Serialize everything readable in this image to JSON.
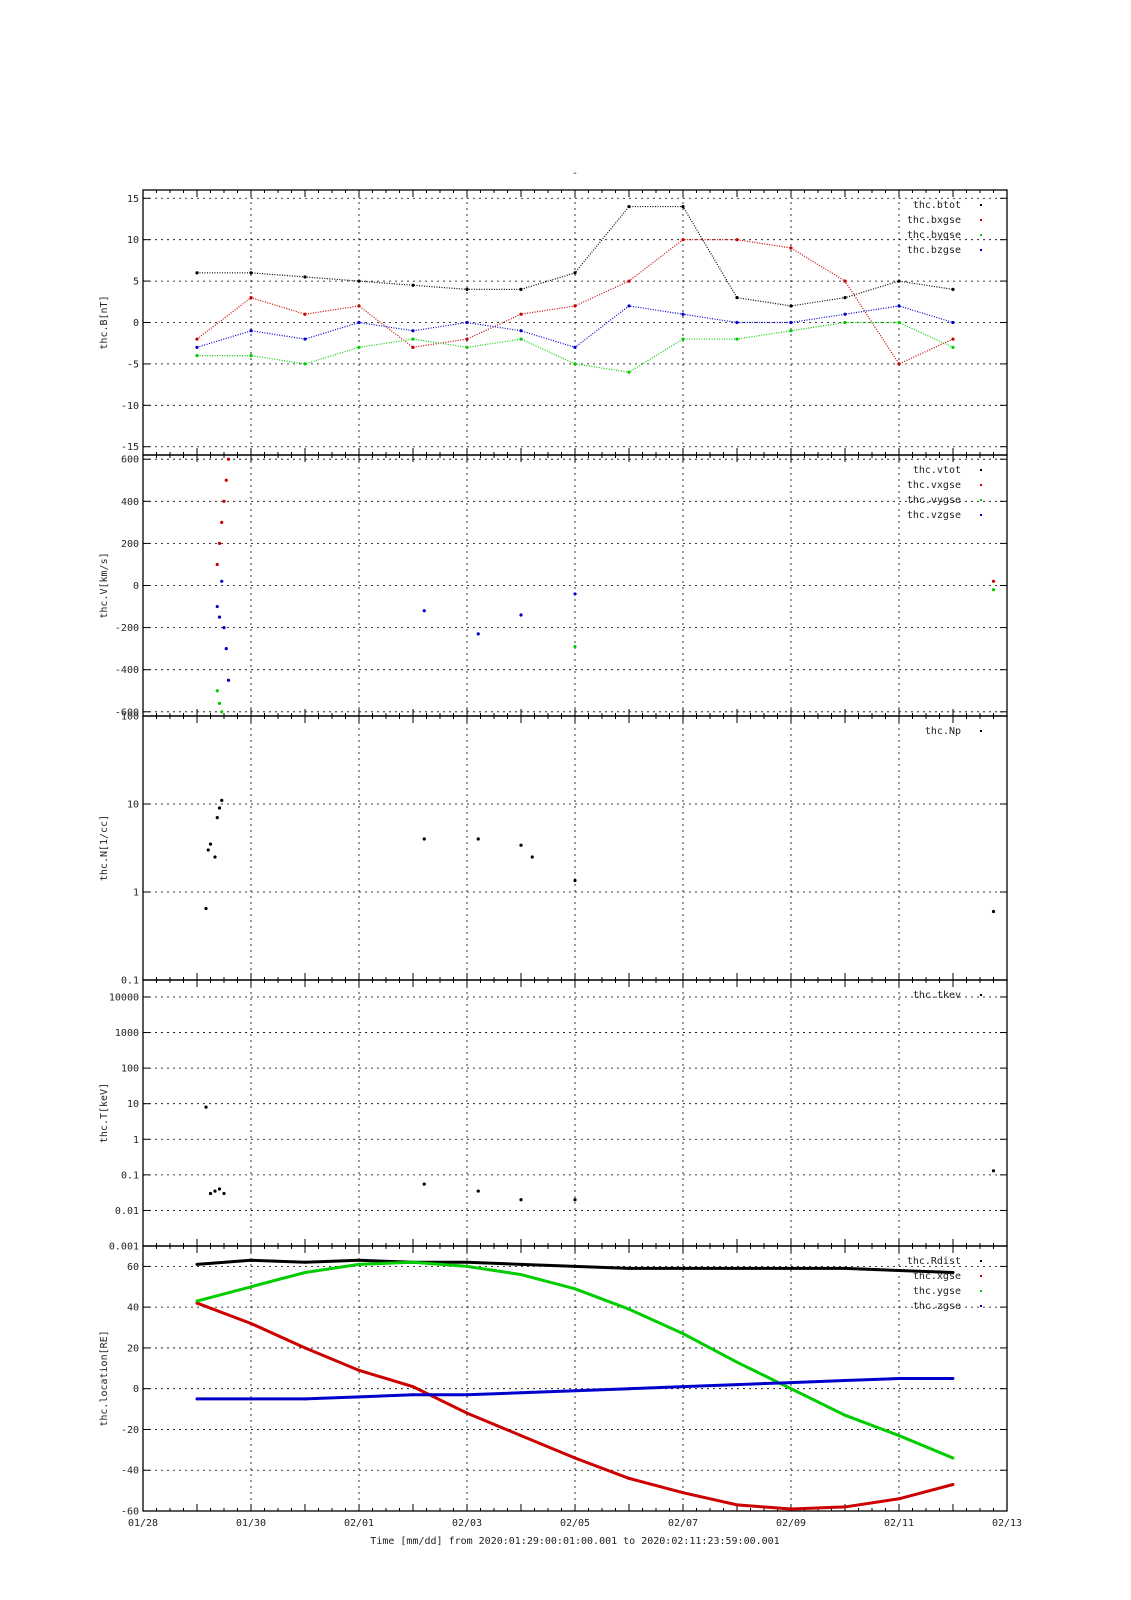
{
  "figure": {
    "title": "-",
    "time_axis": {
      "start": "2020-01-28",
      "end": "2020-02-13",
      "tick_labels": [
        "01/28",
        "01/30",
        "02/01",
        "02/03",
        "02/05",
        "02/07",
        "02/09",
        "02/11",
        "02/13"
      ],
      "caption": "Time [mm/dd]  from 2020:01:29:00:01:00.001  to  2020:02:11:23:59:00.001"
    }
  },
  "colors": {
    "black": "#000000",
    "red": "#cc0000",
    "green": "#00cc00",
    "blue": "#0000cc"
  },
  "chart_data": [
    {
      "type": "scatter",
      "ylabel": "thc.B[nT]",
      "ylim": [
        -16,
        16
      ],
      "yscale": "linear",
      "yticks": [
        -15,
        -10,
        -5,
        0,
        5,
        10,
        15
      ],
      "grid": true,
      "legend_position": "top-right",
      "series": [
        {
          "name": "thc.btot",
          "color": "#000000",
          "x": [
            "2020-01-29",
            "2020-01-30",
            "2020-01-31",
            "2020-02-01",
            "2020-02-02",
            "2020-02-03",
            "2020-02-04",
            "2020-02-05",
            "2020-02-06",
            "2020-02-07",
            "2020-02-08",
            "2020-02-09",
            "2020-02-10",
            "2020-02-11",
            "2020-02-11T23:59"
          ],
          "y": [
            6,
            6,
            5.5,
            5,
            4.5,
            4,
            4,
            6,
            14,
            14,
            3,
            2,
            3,
            5,
            4
          ]
        },
        {
          "name": "thc.bxgse",
          "color": "#cc0000",
          "x": [
            "2020-01-29",
            "2020-01-30",
            "2020-01-31",
            "2020-02-01",
            "2020-02-02",
            "2020-02-03",
            "2020-02-04",
            "2020-02-05",
            "2020-02-06",
            "2020-02-07",
            "2020-02-08",
            "2020-02-09",
            "2020-02-10",
            "2020-02-11",
            "2020-02-11T23:59"
          ],
          "y": [
            -2,
            3,
            1,
            2,
            -3,
            -2,
            1,
            2,
            5,
            10,
            10,
            9,
            5,
            -5,
            -2
          ]
        },
        {
          "name": "thc.bygse",
          "color": "#00cc00",
          "x": [
            "2020-01-29",
            "2020-01-30",
            "2020-01-31",
            "2020-02-01",
            "2020-02-02",
            "2020-02-03",
            "2020-02-04",
            "2020-02-05",
            "2020-02-06",
            "2020-02-07",
            "2020-02-08",
            "2020-02-09",
            "2020-02-10",
            "2020-02-11",
            "2020-02-11T23:59"
          ],
          "y": [
            -4,
            -4,
            -5,
            -3,
            -2,
            -3,
            -2,
            -5,
            -6,
            -2,
            -2,
            -1,
            0,
            0,
            -3
          ]
        },
        {
          "name": "thc.bzgse",
          "color": "#0000cc",
          "x": [
            "2020-01-29",
            "2020-01-30",
            "2020-01-31",
            "2020-02-01",
            "2020-02-02",
            "2020-02-03",
            "2020-02-04",
            "2020-02-05",
            "2020-02-06",
            "2020-02-07",
            "2020-02-08",
            "2020-02-09",
            "2020-02-10",
            "2020-02-11",
            "2020-02-11T23:59"
          ],
          "y": [
            -3,
            -1,
            -2,
            0,
            -1,
            0,
            -1,
            -3,
            2,
            1,
            0,
            0,
            1,
            2,
            0
          ]
        }
      ]
    },
    {
      "type": "scatter",
      "ylabel": "thc.V[km/s]",
      "ylim": [
        -620,
        620
      ],
      "yscale": "linear",
      "yticks": [
        -600,
        -400,
        -200,
        0,
        200,
        400,
        600
      ],
      "grid": true,
      "legend_position": "top-right",
      "series": [
        {
          "name": "thc.vtot",
          "color": "#000000",
          "x": [],
          "y": []
        },
        {
          "name": "thc.vxgse",
          "color": "#cc0000",
          "x": [
            "2020-01-29T09:00",
            "2020-01-29T10:00",
            "2020-01-29T11:00",
            "2020-01-29T12:00",
            "2020-01-29T13:00",
            "2020-01-29T14:00",
            "2020-02-12T18:00"
          ],
          "y": [
            100,
            200,
            300,
            400,
            500,
            600,
            20
          ]
        },
        {
          "name": "thc.vygse",
          "color": "#00cc00",
          "x": [
            "2020-01-29T09:00",
            "2020-01-29T10:00",
            "2020-01-29T11:00",
            "2020-02-05T00:00",
            "2020-02-12T18:00"
          ],
          "y": [
            -500,
            -560,
            -600,
            -290,
            -20
          ]
        },
        {
          "name": "thc.vzgse",
          "color": "#0000cc",
          "x": [
            "2020-01-29T09:00",
            "2020-01-29T10:00",
            "2020-01-29T11:00",
            "2020-01-29T12:00",
            "2020-01-29T13:00",
            "2020-01-29T14:00",
            "2020-02-02T05:00",
            "2020-02-03T05:00",
            "2020-02-04T00:00",
            "2020-02-05T00:00"
          ],
          "y": [
            -100,
            -150,
            20,
            -200,
            -300,
            -450,
            -120,
            -230,
            -140,
            -40
          ]
        }
      ]
    },
    {
      "type": "scatter",
      "ylabel": "thc.N[1/cc]",
      "ylim": [
        0.1,
        100
      ],
      "yscale": "log",
      "yticks": [
        0.1,
        1,
        10,
        100
      ],
      "grid": true,
      "legend_position": "top-right",
      "series": [
        {
          "name": "thc.Np",
          "color": "#000000",
          "x": [
            "2020-01-29T04:00",
            "2020-01-29T05:00",
            "2020-01-29T06:00",
            "2020-01-29T08:00",
            "2020-01-29T09:00",
            "2020-01-29T10:00",
            "2020-01-29T11:00",
            "2020-02-02T05:00",
            "2020-02-03T05:00",
            "2020-02-04T00:00",
            "2020-02-04T05:00",
            "2020-02-05T00:00",
            "2020-02-12T18:00"
          ],
          "y": [
            0.65,
            3,
            3.5,
            2.5,
            7,
            9,
            11,
            4,
            4,
            3.4,
            2.5,
            1.35,
            0.6
          ]
        }
      ]
    },
    {
      "type": "scatter",
      "ylabel": "thc.T[keV]",
      "ylim": [
        0.001,
        30000
      ],
      "yscale": "log",
      "yticks": [
        0.001,
        0.01,
        0.1,
        1,
        10,
        100,
        1000,
        10000
      ],
      "ytick_labels": [
        "0.001",
        "0.01",
        "0.1",
        "1",
        "10",
        "100",
        "1000",
        "10000"
      ],
      "grid": true,
      "legend_position": "top-right",
      "series": [
        {
          "name": "thc.tkev",
          "color": "#000000",
          "x": [
            "2020-01-29T04:00",
            "2020-01-29T06:00",
            "2020-01-29T08:00",
            "2020-01-29T10:00",
            "2020-01-29T12:00",
            "2020-02-02T05:00",
            "2020-02-03T05:00",
            "2020-02-04T00:00",
            "2020-02-05T00:00",
            "2020-02-12T18:00"
          ],
          "y": [
            8,
            0.03,
            0.035,
            0.04,
            0.03,
            0.055,
            0.035,
            0.02,
            0.02,
            0.13
          ]
        }
      ]
    },
    {
      "type": "line",
      "ylabel": "thc.location[RE]",
      "ylim": [
        -60,
        70
      ],
      "yscale": "linear",
      "yticks": [
        -60,
        -40,
        -20,
        0,
        20,
        40,
        60
      ],
      "grid": true,
      "legend_position": "top-right",
      "series": [
        {
          "name": "thc.Rdist",
          "color": "#000000",
          "x": [
            "2020-01-29",
            "2020-01-30",
            "2020-01-31",
            "2020-02-01",
            "2020-02-02",
            "2020-02-03",
            "2020-02-04",
            "2020-02-05",
            "2020-02-06",
            "2020-02-07",
            "2020-02-08",
            "2020-02-09",
            "2020-02-10",
            "2020-02-11",
            "2020-02-11T23:59"
          ],
          "y": [
            61,
            63,
            62,
            63,
            62,
            62,
            61,
            60,
            59,
            59,
            59,
            59,
            59,
            58,
            57
          ]
        },
        {
          "name": "thc.xgse",
          "color": "#cc0000",
          "x": [
            "2020-01-29",
            "2020-01-30",
            "2020-01-31",
            "2020-02-01",
            "2020-02-02",
            "2020-02-03",
            "2020-02-04",
            "2020-02-05",
            "2020-02-06",
            "2020-02-07",
            "2020-02-08",
            "2020-02-09",
            "2020-02-10",
            "2020-02-11",
            "2020-02-11T23:59"
          ],
          "y": [
            42,
            32,
            20,
            9,
            1,
            -12,
            -23,
            -34,
            -44,
            -51,
            -57,
            -59,
            -58,
            -54,
            -47
          ]
        },
        {
          "name": "thc.ygse",
          "color": "#00cc00",
          "x": [
            "2020-01-29",
            "2020-01-30",
            "2020-01-31",
            "2020-02-01",
            "2020-02-02",
            "2020-02-03",
            "2020-02-04",
            "2020-02-05",
            "2020-02-06",
            "2020-02-07",
            "2020-02-08",
            "2020-02-09",
            "2020-02-10",
            "2020-02-11",
            "2020-02-11T23:59"
          ],
          "y": [
            43,
            50,
            57,
            61,
            62,
            60,
            56,
            49,
            39,
            27,
            13,
            0,
            -13,
            -23,
            -34
          ]
        },
        {
          "name": "thc.zgse",
          "color": "#0000cc",
          "x": [
            "2020-01-29",
            "2020-01-30",
            "2020-01-31",
            "2020-02-01",
            "2020-02-02",
            "2020-02-03",
            "2020-02-04",
            "2020-02-05",
            "2020-02-06",
            "2020-02-07",
            "2020-02-08",
            "2020-02-09",
            "2020-02-10",
            "2020-02-11",
            "2020-02-11T23:59"
          ],
          "y": [
            -5,
            -5,
            -5,
            -4,
            -3,
            -3,
            -2,
            -1,
            0,
            1,
            2,
            3,
            4,
            5,
            5
          ]
        }
      ]
    }
  ]
}
